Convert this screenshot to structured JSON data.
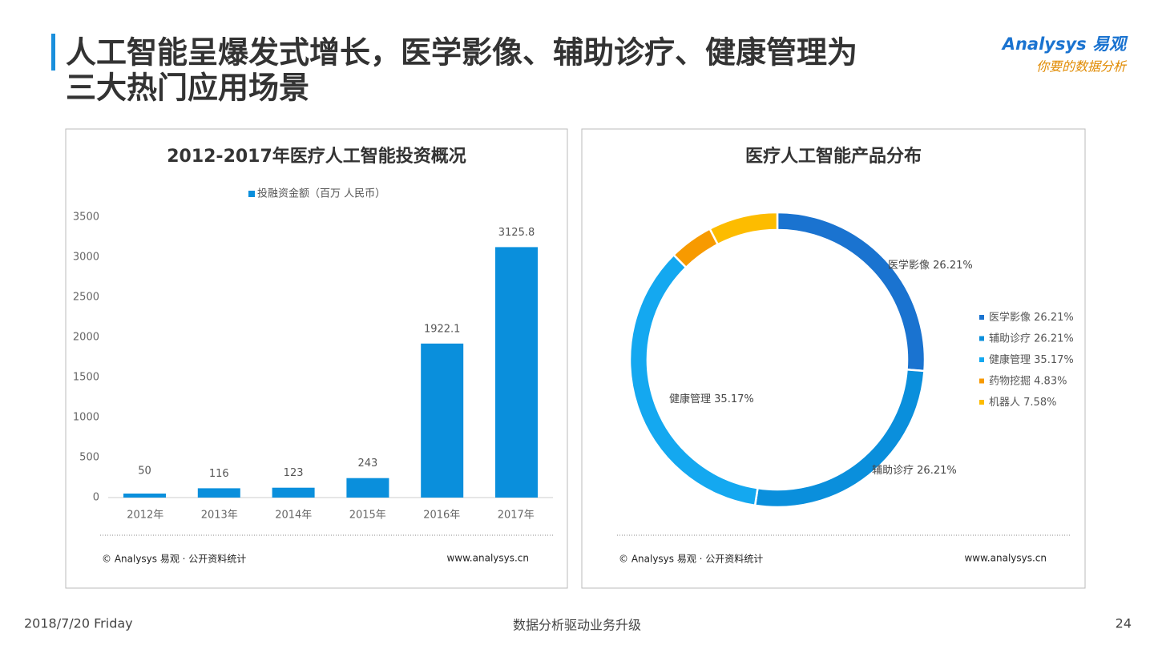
{
  "header": {
    "title_lines": [
      "人工智能呈爆发式增长，医学影像、辅助诊疗、健康管理为",
      "三大热门应用场景"
    ],
    "logo_name": "Analysys 易观",
    "logo_slogan": "你要的数据分析"
  },
  "chart_data": [
    {
      "type": "bar",
      "title": "2012-2017年医疗人工智能投资概况",
      "categories": [
        "2012年",
        "2013年",
        "2014年",
        "2015年",
        "2016年",
        "2017年"
      ],
      "series": [
        {
          "name": "投融资金额（百万 人民币）",
          "color": "#0a8fdc",
          "values": [
            50,
            116,
            123,
            243,
            1922.1,
            3125.8
          ]
        }
      ],
      "ylim": [
        0,
        3500
      ],
      "yticks": [
        0,
        500,
        1000,
        1500,
        2000,
        2500,
        3000,
        3500
      ],
      "grid": false,
      "source": "© Analysys 易观 · 公开资料统计",
      "website": "www.analysys.cn"
    },
    {
      "type": "pie",
      "title": "医疗人工智能产品分布",
      "categories": [
        "医学影像",
        "辅助诊疗",
        "健康管理",
        "药物挖掘",
        "机器人"
      ],
      "values": [
        26.21,
        26.21,
        35.17,
        4.83,
        7.58
      ],
      "value_labels": [
        "26.21%",
        "26.21%",
        "35.17%",
        "4.83%",
        "7.58%"
      ],
      "colors": [
        "#1a73d0",
        "#0a8fdc",
        "#14a8f0",
        "#f79a00",
        "#fdbc00"
      ],
      "legend": "right",
      "source": "© Analysys 易观 · 公开资料统计",
      "website": "www.analysys.cn"
    }
  ],
  "footer": {
    "date": "2018/7/20 Friday",
    "slogan": "数据分析驱动业务升级",
    "page": 24
  }
}
